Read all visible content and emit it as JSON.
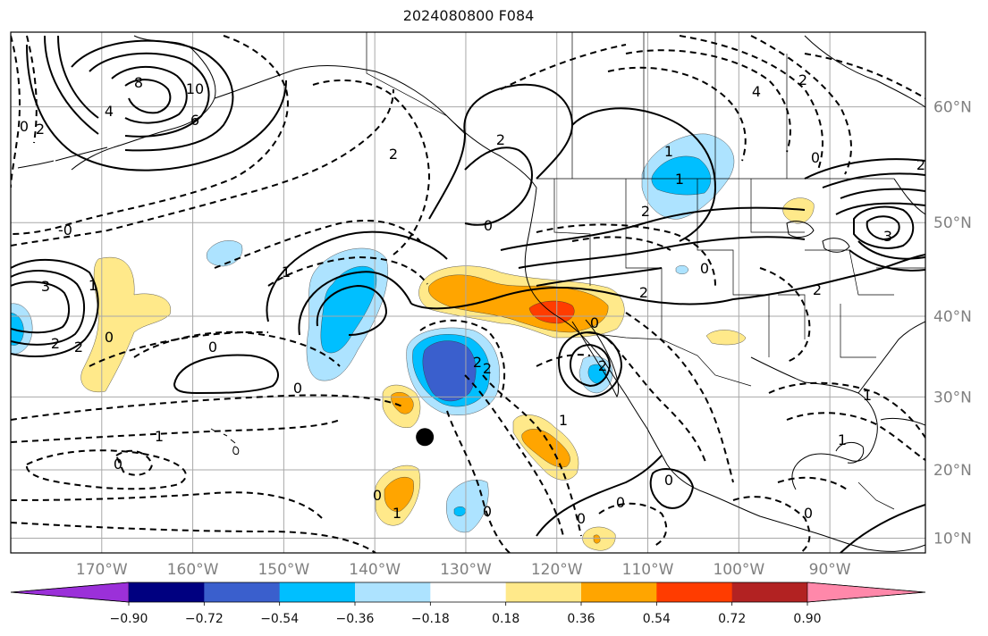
{
  "title": "2024080800 F084",
  "lat_labels": [
    "60°N",
    "50°N",
    "40°N",
    "30°N",
    "20°N",
    "10°N"
  ],
  "lon_labels": [
    "170°W",
    "160°W",
    "150°W",
    "140°W",
    "130°W",
    "120°W",
    "110°W",
    "100°W",
    "90°W"
  ],
  "colorbar": {
    "ticks": [
      "−0.90",
      "−0.72",
      "−0.54",
      "−0.36",
      "−0.18",
      "0.18",
      "0.36",
      "0.54",
      "0.72",
      "0.90"
    ],
    "colors": [
      "#9b30d9",
      "#000080",
      "#3a5fcd",
      "#00bfff",
      "#ade3ff",
      "#ffffff",
      "#ffe98a",
      "#ffa500",
      "#ff3c00",
      "#b22222",
      "#ff88aa"
    ]
  },
  "shade_colors": {
    "light_blue": "#ade3ff",
    "blue": "#00bfff",
    "dark_blue": "#3a5fcd",
    "yellow": "#ffe98a",
    "orange": "#ffa500",
    "red": "#ff3c00"
  },
  "contour_labels": [
    {
      "text": "0",
      "kind": "neg"
    },
    {
      "text": "2",
      "kind": "pos"
    },
    {
      "text": "4",
      "kind": "pos"
    },
    {
      "text": "8",
      "kind": "pos"
    },
    {
      "text": "10",
      "kind": "pos"
    },
    {
      "text": "6",
      "kind": "pos"
    },
    {
      "text": "-0",
      "kind": "neg"
    },
    {
      "text": "3",
      "kind": "pos"
    },
    {
      "text": "2",
      "kind": "pos"
    },
    {
      "text": "0",
      "kind": "neg"
    },
    {
      "text": "1",
      "kind": "neg"
    },
    {
      "text": "2",
      "kind": "pos"
    },
    {
      "text": "0",
      "kind": "neg"
    },
    {
      "text": "2",
      "kind": "pos"
    },
    {
      "text": "0",
      "kind": "neg"
    },
    {
      "text": "0",
      "kind": "neg"
    },
    {
      "text": "1",
      "kind": "neg"
    },
    {
      "text": "2",
      "kind": "neg"
    },
    {
      "text": "2",
      "kind": "pos"
    },
    {
      "text": "2",
      "kind": "pos"
    },
    {
      "text": "0",
      "kind": "neg"
    },
    {
      "text": "1",
      "kind": "pos"
    },
    {
      "text": "2",
      "kind": "neg"
    },
    {
      "text": "1",
      "kind": "pos"
    },
    {
      "text": "4",
      "kind": "neg"
    },
    {
      "text": "2",
      "kind": "pos"
    },
    {
      "text": "0",
      "kind": "neg"
    },
    {
      "text": "2",
      "kind": "neg"
    },
    {
      "text": "0",
      "kind": "neg"
    },
    {
      "text": "2",
      "kind": "neg"
    },
    {
      "text": "3",
      "kind": "pos"
    },
    {
      "text": "0",
      "kind": "neg"
    },
    {
      "text": "2",
      "kind": "pos"
    },
    {
      "text": "0",
      "kind": "neg"
    },
    {
      "text": "1",
      "kind": "neg"
    },
    {
      "text": "0",
      "kind": "neg"
    },
    {
      "text": "0",
      "kind": "neg"
    },
    {
      "text": "1",
      "kind": "pos"
    },
    {
      "text": "0",
      "kind": "neg"
    },
    {
      "text": "0",
      "kind": "neg"
    },
    {
      "text": "1",
      "kind": "neg"
    },
    {
      "text": "1",
      "kind": "neg"
    },
    {
      "text": "0",
      "kind": "neg"
    },
    {
      "text": "2",
      "kind": "neg"
    },
    {
      "text": "1",
      "kind": "neg"
    }
  ],
  "marker": {
    "name": "storm-position-dot",
    "lon": -134.5,
    "lat": 24.6
  }
}
